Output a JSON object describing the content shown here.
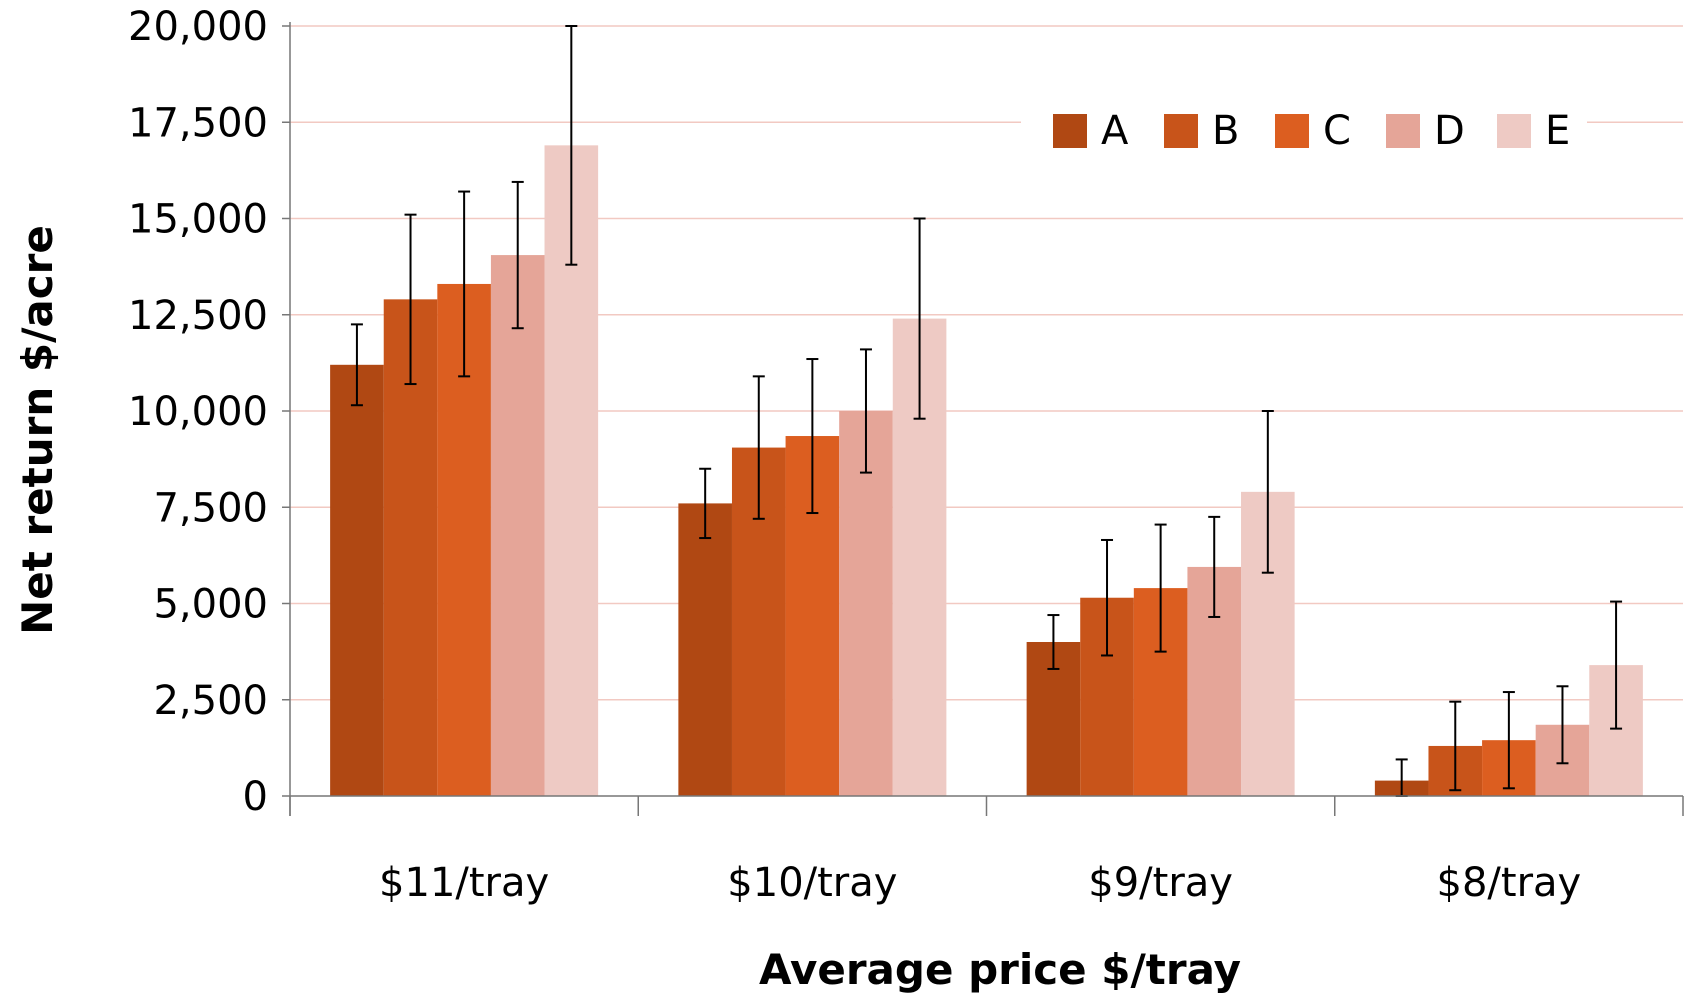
{
  "chart_data": {
    "type": "bar",
    "title": "",
    "xlabel": "Average price $/tray",
    "ylabel": "Net return $/acre",
    "ylim": [
      0,
      20000
    ],
    "yticks": [
      0,
      2500,
      5000,
      7500,
      10000,
      12500,
      15000,
      17500,
      20000
    ],
    "ytick_labels": [
      "0",
      "2,500",
      "5,000",
      "7,500",
      "10,000",
      "12,500",
      "15,000",
      "17,500",
      "20,000"
    ],
    "grid": "horizontal",
    "legend_position": "top-right",
    "categories": [
      "$11/tray",
      "$10/tray",
      "$9/tray",
      "$8/tray"
    ],
    "series": [
      {
        "name": "A",
        "color": "#b04813",
        "values": [
          11200,
          7600,
          4000,
          400
        ],
        "error": [
          1050,
          900,
          700,
          550
        ]
      },
      {
        "name": "B",
        "color": "#c8541a",
        "values": [
          12900,
          9050,
          5150,
          1300
        ],
        "error": [
          2200,
          1850,
          1500,
          1150
        ]
      },
      {
        "name": "C",
        "color": "#dc5e20",
        "values": [
          13300,
          9350,
          5400,
          1450
        ],
        "error": [
          2400,
          2000,
          1650,
          1250
        ]
      },
      {
        "name": "D",
        "color": "#e5a598",
        "values": [
          14050,
          10000,
          5950,
          1850
        ],
        "error": [
          1900,
          1600,
          1300,
          1000
        ]
      },
      {
        "name": "E",
        "color": "#eecac4",
        "values": [
          16900,
          12400,
          7900,
          3400
        ],
        "error": [
          3100,
          2600,
          2100,
          1650
        ]
      }
    ]
  }
}
